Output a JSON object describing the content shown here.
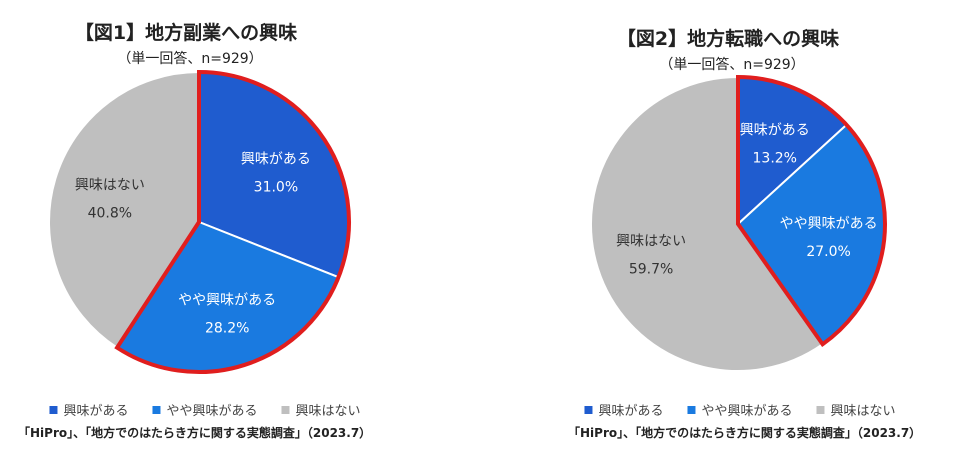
{
  "chart_data": [
    {
      "type": "pie",
      "title": "【図1】地方副業への興味",
      "subtitle": "（単一回答、n=929）",
      "categories": [
        "興味がある",
        "やや興味がある",
        "興味はない"
      ],
      "values": [
        31.0,
        28.2,
        40.8
      ],
      "value_labels": [
        "31.0%",
        "28.2%",
        "40.8%"
      ],
      "colors": [
        "#1f5ccf",
        "#1a7ae0",
        "#bfbfbf"
      ],
      "highlight": {
        "slices": [
          0,
          1
        ],
        "outline_color": "#e01e1e"
      },
      "legend": [
        "興味がある",
        "やや興味がある",
        "興味はない"
      ],
      "legend_position": "bottom",
      "source": "「HiPro」、「地方でのはたらき方に関する実態調査」（2023.7）"
    },
    {
      "type": "pie",
      "title": "【図2】地方転職への興味",
      "subtitle": "（単一回答、n=929）",
      "categories": [
        "興味がある",
        "やや興味がある",
        "興味はない"
      ],
      "values": [
        13.2,
        27.0,
        59.7
      ],
      "value_labels": [
        "13.2%",
        "27.0%",
        "59.7%"
      ],
      "colors": [
        "#1f5ccf",
        "#1a7ae0",
        "#bfbfbf"
      ],
      "highlight": {
        "slices": [
          0,
          1
        ],
        "outline_color": "#e01e1e"
      },
      "legend": [
        "興味がある",
        "やや興味がある",
        "興味はない"
      ],
      "legend_position": "bottom",
      "source": "「HiPro」、「地方でのはたらき方に関する実態調査」（2023.7）"
    }
  ]
}
